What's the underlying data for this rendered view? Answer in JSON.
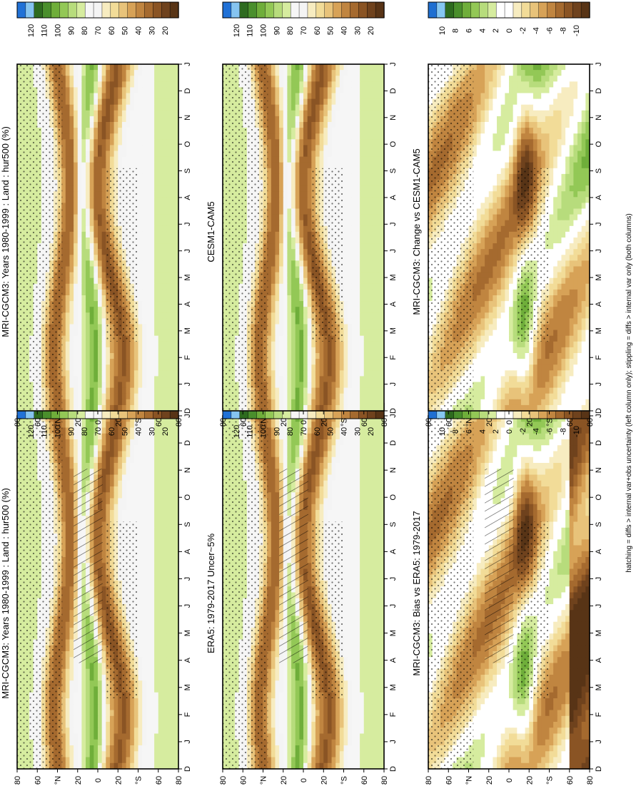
{
  "footnote": "hatching = diffs > internal var+obs uncertainty (left column only); stippling = diffs > internal var only (both columns)",
  "month_labels": [
    "D",
    "J",
    "F",
    "M",
    "A",
    "M",
    "J",
    "J",
    "A",
    "S",
    "O",
    "N",
    "D",
    "J"
  ],
  "lat_labels": [
    "80",
    "60",
    "°N",
    "20",
    "0",
    "20",
    "°S",
    "60",
    "80"
  ],
  "chart_data": [
    {
      "type": "heatmap",
      "title": "MRI-CGCM3: Years 1980-1999 : Land : hur500 (%)",
      "colorbar": {
        "labels": [
          "120",
          "110",
          "100",
          "90",
          "80",
          "70",
          "60",
          "50",
          "40",
          "30",
          "20"
        ],
        "colors": [
          "#2171d6",
          "#86c4f0",
          "#2e6b1f",
          "#4a8f2c",
          "#6fae3a",
          "#93c856",
          "#b7dc7c",
          "#d6ec9f",
          "#f6f6f6",
          "#f4f4f4",
          "#f7ecc0",
          "#f2dc98",
          "#e8c37a",
          "#d7a257",
          "#c08540",
          "#a56a2f",
          "#8a5424",
          "#6f421d",
          "#583416"
        ]
      },
      "hatching": true
    },
    {
      "type": "heatmap",
      "title": "MRI-CGCM3: Years 1980-1999 : Land : hur500 (%)",
      "colorbar": {
        "labels": [
          "120",
          "110",
          "100",
          "90",
          "80",
          "70",
          "60",
          "50",
          "40",
          "30",
          "20"
        ]
      },
      "hatching": false
    },
    {
      "type": "heatmap",
      "title": "ERA5: 1979-2017 Uncer~5%",
      "colorbar": {
        "labels": [
          "120",
          "110",
          "100",
          "90",
          "80",
          "70",
          "60",
          "50",
          "40",
          "30",
          "20"
        ]
      },
      "hatching": true
    },
    {
      "type": "heatmap",
      "title": "CESM1-CAM5",
      "colorbar": {
        "labels": [
          "120",
          "110",
          "100",
          "90",
          "80",
          "70",
          "60",
          "50",
          "40",
          "30",
          "20"
        ]
      },
      "hatching": false
    },
    {
      "type": "heatmap",
      "title": "MRI-CGCM3: Bias vs ERA5: 1979-2017",
      "colorbar": {
        "labels": [
          "10",
          "8",
          "6",
          "4",
          "2",
          "0",
          "-2",
          "-4",
          "-6",
          "-8",
          "-10"
        ],
        "colors": [
          "#1f6fd1",
          "#86c7f2",
          "#2e6b1f",
          "#4a8f2c",
          "#6fae3a",
          "#93c856",
          "#b7dc7c",
          "#d6ec9f",
          "#ffffff",
          "#ffffff",
          "#f7ecc0",
          "#f2dc98",
          "#e8c37a",
          "#d7a257",
          "#c08540",
          "#a56a2f",
          "#8a5424",
          "#6f421d",
          "#583416"
        ]
      },
      "hatching": true
    },
    {
      "type": "heatmap",
      "title": "MRI-CGCM3: Change vs CESM1-CAM5",
      "colorbar": {
        "labels": [
          "10",
          "8",
          "6",
          "4",
          "2",
          "0",
          "-2",
          "-4",
          "-6",
          "-8",
          "-10"
        ]
      },
      "hatching": false
    }
  ]
}
